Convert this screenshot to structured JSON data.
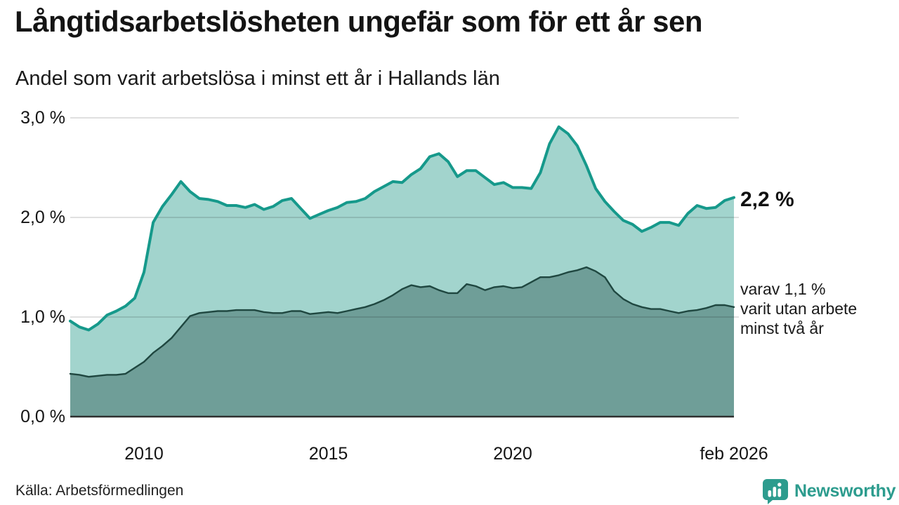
{
  "header": {
    "title": "Långtidsarbetslösheten ungefär som för ett år sen",
    "subtitle": "Andel som varit arbetslösa i minst ett år i Hallands län"
  },
  "annotations": {
    "latest_value": "2,2 %",
    "secondary_note": "varav 1,1 %\nvarit utan arbete\nminst två år"
  },
  "footer": {
    "source": "Källa: Arbetsförmedlingen",
    "brand": "Newsworthy"
  },
  "colors": {
    "accent_line": "#16998b",
    "area_light": "#a2d4cd",
    "area_dark": "#6f9e98",
    "line_dark": "#1f4740",
    "gridline": "rgba(0,0,0,0.12)",
    "axis": "#2f2f2f",
    "brand": "#2d9c8e"
  },
  "chart_data": {
    "type": "area",
    "title": "Långtidsarbetslösheten ungefär som för ett år sen",
    "subtitle": "Andel som varit arbetslösa i minst ett år i Hallands län",
    "xlabel": "",
    "ylabel": "",
    "xlim": [
      2008.083,
      2026.083
    ],
    "ylim": [
      0,
      3.0
    ],
    "grid": "horizontal",
    "legend_position": "right-annotations",
    "unit": "%",
    "t_start": 2008.083,
    "t_step": 0.25,
    "x_ticks": [
      {
        "label": "2010",
        "t": 2010.083
      },
      {
        "label": "2015",
        "t": 2015.083
      },
      {
        "label": "2020",
        "t": 2020.083
      },
      {
        "label": "feb 2026",
        "t": 2026.083
      }
    ],
    "y_ticks": [
      {
        "label": "0,0 %",
        "v": 0
      },
      {
        "label": "1,0 %",
        "v": 1
      },
      {
        "label": "2,0 %",
        "v": 2
      },
      {
        "label": "3,0 %",
        "v": 3
      }
    ],
    "series": [
      {
        "id": "one-year",
        "name": "Andel arbetslösa minst ett år",
        "latest_label": "2,2 %",
        "color": "#16998b",
        "fill": "#a2d4cd",
        "values": [
          0.96,
          0.9,
          0.87,
          0.93,
          1.02,
          1.06,
          1.11,
          1.19,
          1.45,
          1.95,
          2.11,
          2.23,
          2.36,
          2.26,
          2.19,
          2.18,
          2.16,
          2.12,
          2.12,
          2.1,
          2.13,
          2.08,
          2.11,
          2.17,
          2.19,
          2.09,
          1.99,
          2.03,
          2.07,
          2.1,
          2.15,
          2.16,
          2.19,
          2.26,
          2.31,
          2.36,
          2.35,
          2.43,
          2.49,
          2.61,
          2.64,
          2.56,
          2.41,
          2.47,
          2.47,
          2.4,
          2.33,
          2.35,
          2.3,
          2.3,
          2.29,
          2.45,
          2.74,
          2.91,
          2.84,
          2.72,
          2.52,
          2.29,
          2.16,
          2.06,
          1.97,
          1.93,
          1.86,
          1.9,
          1.95,
          1.95,
          1.92,
          2.04,
          2.12,
          2.09,
          2.1,
          2.17,
          2.2
        ]
      },
      {
        "id": "two-years",
        "name": "varav utan arbete minst två år",
        "latest_label": "1,1 %",
        "color": "#1f4740",
        "fill": "#6f9e98",
        "values": [
          0.43,
          0.42,
          0.4,
          0.41,
          0.42,
          0.42,
          0.43,
          0.49,
          0.55,
          0.64,
          0.71,
          0.79,
          0.9,
          1.01,
          1.04,
          1.05,
          1.06,
          1.06,
          1.07,
          1.07,
          1.07,
          1.05,
          1.04,
          1.04,
          1.06,
          1.06,
          1.03,
          1.04,
          1.05,
          1.04,
          1.06,
          1.08,
          1.1,
          1.13,
          1.17,
          1.22,
          1.28,
          1.32,
          1.3,
          1.31,
          1.27,
          1.24,
          1.24,
          1.33,
          1.31,
          1.27,
          1.3,
          1.31,
          1.29,
          1.3,
          1.35,
          1.4,
          1.4,
          1.42,
          1.45,
          1.47,
          1.5,
          1.46,
          1.4,
          1.26,
          1.18,
          1.13,
          1.1,
          1.08,
          1.08,
          1.06,
          1.04,
          1.06,
          1.07,
          1.09,
          1.12,
          1.12,
          1.1
        ]
      }
    ]
  }
}
